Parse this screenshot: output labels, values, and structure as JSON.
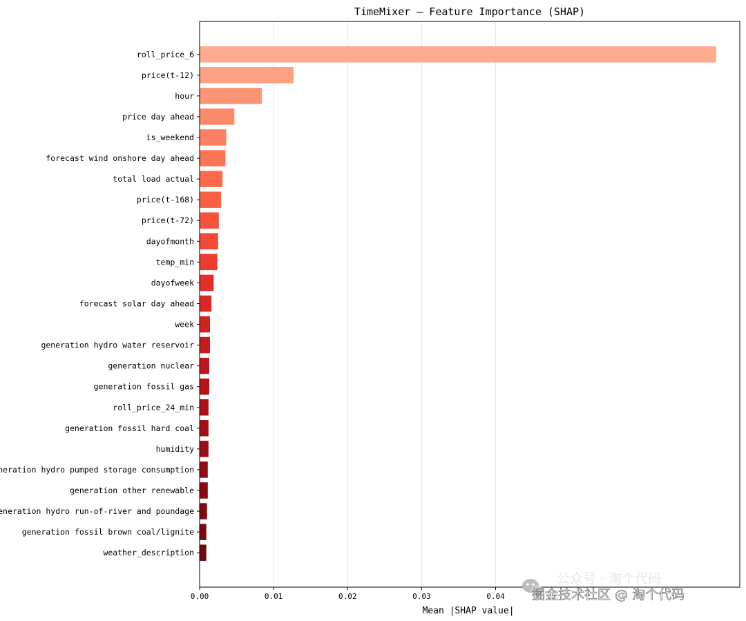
{
  "chart_data": {
    "type": "bar",
    "orientation": "horizontal",
    "title": "TimeMixer — Feature Importance (SHAP)",
    "xlabel": "Mean |SHAP value|",
    "ylabel": "",
    "xlim": [
      0,
      0.073
    ],
    "xticks": [
      0.0,
      0.01,
      0.02,
      0.03,
      0.04
    ],
    "xtick_labels": [
      "0.00",
      "0.01",
      "0.02",
      "0.03",
      "0.04"
    ],
    "grid": "vertical",
    "categories": [
      "roll_price_6",
      "price(t-12)",
      "hour",
      "price day ahead",
      "is_weekend",
      "forecast wind onshore day ahead",
      "total load actual",
      "price(t-168)",
      "price(t-72)",
      "dayofmonth",
      "temp_min",
      "dayofweek",
      "forecast solar day ahead",
      "week",
      "generation hydro water reservoir",
      "generation nuclear",
      "generation fossil gas",
      "roll_price_24_min",
      "generation fossil hard coal",
      "humidity",
      "generation hydro pumped storage consumption",
      "generation other renewable",
      "generation hydro run-of-river and poundage",
      "generation fossil brown coal/lignite",
      "weather_description"
    ],
    "values": [
      0.0698,
      0.0127,
      0.0084,
      0.0047,
      0.0036,
      0.0035,
      0.0031,
      0.0029,
      0.0026,
      0.0025,
      0.0024,
      0.0019,
      0.0016,
      0.0014,
      0.0014,
      0.0013,
      0.0013,
      0.0012,
      0.0012,
      0.0012,
      0.0011,
      0.0011,
      0.001,
      0.0009,
      0.0009
    ],
    "colors": [
      "#fcab8f",
      "#fca183",
      "#fc9576",
      "#fc8a6a",
      "#fc7f5f",
      "#fb7555",
      "#fb694a",
      "#f85f43",
      "#f5533b",
      "#f24a35",
      "#ed3d2f",
      "#e32f27",
      "#da2723",
      "#d22220",
      "#c81b1d",
      "#bf151b",
      "#b71319",
      "#ad1117",
      "#a40f15",
      "#9c0d14",
      "#940b13",
      "#8b0a12",
      "#830911",
      "#7a0810",
      "#71070f"
    ]
  },
  "watermark": {
    "text": "掘金技术社区 @ 淘个代码",
    "shadow_text": "公众号 · 淘个代码",
    "icon": "wechat-icon"
  }
}
